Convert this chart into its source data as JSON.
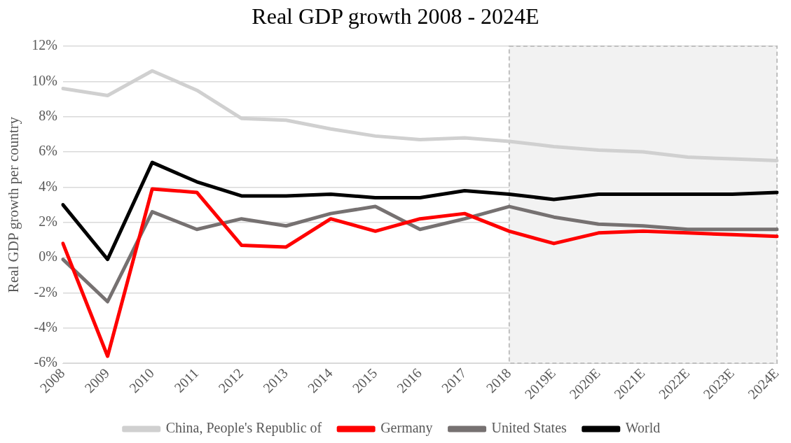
{
  "chart_data": {
    "type": "line",
    "title": "Real GDP growth 2008 - 2024E",
    "ylabel": "Real GDP growth per country",
    "categories": [
      "2008",
      "2009",
      "2010",
      "2011",
      "2012",
      "2013",
      "2014",
      "2015",
      "2016",
      "2017",
      "2018",
      "2019E",
      "2020E",
      "2021E",
      "2022E",
      "2023E",
      "2024E"
    ],
    "series": [
      {
        "name": "China, People's Republic of",
        "color": "#d0d0d0",
        "values": [
          9.6,
          9.2,
          10.6,
          9.5,
          7.9,
          7.8,
          7.3,
          6.9,
          6.7,
          6.8,
          6.6,
          6.3,
          6.1,
          6.0,
          5.7,
          5.6,
          5.5
        ]
      },
      {
        "name": "Germany",
        "color": "#ff0000",
        "values": [
          0.8,
          -5.6,
          3.9,
          3.7,
          0.7,
          0.6,
          2.2,
          1.5,
          2.2,
          2.5,
          1.5,
          0.8,
          1.4,
          1.5,
          1.4,
          1.3,
          1.2
        ]
      },
      {
        "name": "United States",
        "color": "#767171",
        "values": [
          -0.1,
          -2.5,
          2.6,
          1.6,
          2.2,
          1.8,
          2.5,
          2.9,
          1.6,
          2.2,
          2.9,
          2.3,
          1.9,
          1.8,
          1.6,
          1.6,
          1.6
        ]
      },
      {
        "name": "World",
        "color": "#000000",
        "values": [
          3.0,
          -0.1,
          5.4,
          4.3,
          3.5,
          3.5,
          3.6,
          3.4,
          3.4,
          3.8,
          3.6,
          3.3,
          3.6,
          3.6,
          3.6,
          3.6,
          3.7
        ]
      }
    ],
    "ylim": [
      -6,
      12
    ],
    "yticks": [
      {
        "value": -6,
        "label": "-6%"
      },
      {
        "value": -4,
        "label": "-4%"
      },
      {
        "value": -2,
        "label": "-2%"
      },
      {
        "value": 0,
        "label": "0%"
      },
      {
        "value": 2,
        "label": "2%"
      },
      {
        "value": 4,
        "label": "4%"
      },
      {
        "value": 6,
        "label": "6%"
      },
      {
        "value": 8,
        "label": "8%"
      },
      {
        "value": 10,
        "label": "10%"
      },
      {
        "value": 12,
        "label": "12%"
      }
    ],
    "bands": [
      {
        "axis": "x",
        "from": "2018",
        "to": "2024E",
        "color": "#f2f2f2"
      }
    ],
    "grid": "y",
    "legend": "bottom",
    "marker": "none",
    "line_style": "solid"
  }
}
